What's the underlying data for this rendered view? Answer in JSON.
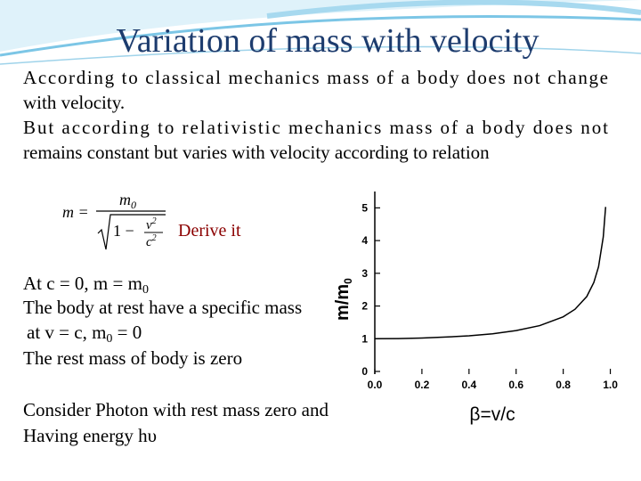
{
  "title": "Variation of mass with velocity",
  "intro": [
    "According to classical mechanics mass of a body does not change",
    "with velocity.",
    "But according to relativistic mechanics mass of a body does not",
    "remains constant but varies with velocity according to relation"
  ],
  "formula": {
    "lhs": "m =",
    "num": "m",
    "num_sub": "0",
    "one": "1 −",
    "v": "v",
    "v_sup": "2",
    "c": "c",
    "c_sup": "2"
  },
  "derive": "Derive it",
  "facts": {
    "line1": {
      "text": "At c = 0, m = m",
      "sub": "0"
    },
    "line2": "The body at rest have a specific mass",
    "line3": {
      "text": "at v = c, m",
      "sub": "0",
      "rest": " = 0"
    },
    "line4": "The rest mass of body is zero"
  },
  "photon": [
    "Consider Photon with rest mass zero and",
    "Having energy hυ"
  ],
  "chart_data": {
    "type": "line",
    "x_label": "β=v/c",
    "y_label": {
      "text": "m/m",
      "sub": "0"
    },
    "x": [
      0,
      0.1,
      0.2,
      0.3,
      0.4,
      0.5,
      0.6,
      0.7,
      0.8,
      0.85,
      0.9,
      0.93,
      0.95,
      0.97,
      0.98
    ],
    "series": [
      {
        "color": "#000000",
        "values": [
          1,
          1.005,
          1.02,
          1.05,
          1.09,
          1.15,
          1.25,
          1.4,
          1.67,
          1.9,
          2.29,
          2.72,
          3.2,
          4.11,
          5.03
        ]
      }
    ],
    "xlim": [
      0,
      1.1
    ],
    "ylim": [
      0,
      5.5
    ],
    "xticks": [
      {
        "value": 0,
        "label": "0.0"
      },
      0.2,
      0.4,
      0.6,
      0.8,
      {
        "value": 1,
        "label": "1.0"
      }
    ],
    "yticks": [
      0,
      1,
      2,
      3,
      4,
      5
    ]
  }
}
